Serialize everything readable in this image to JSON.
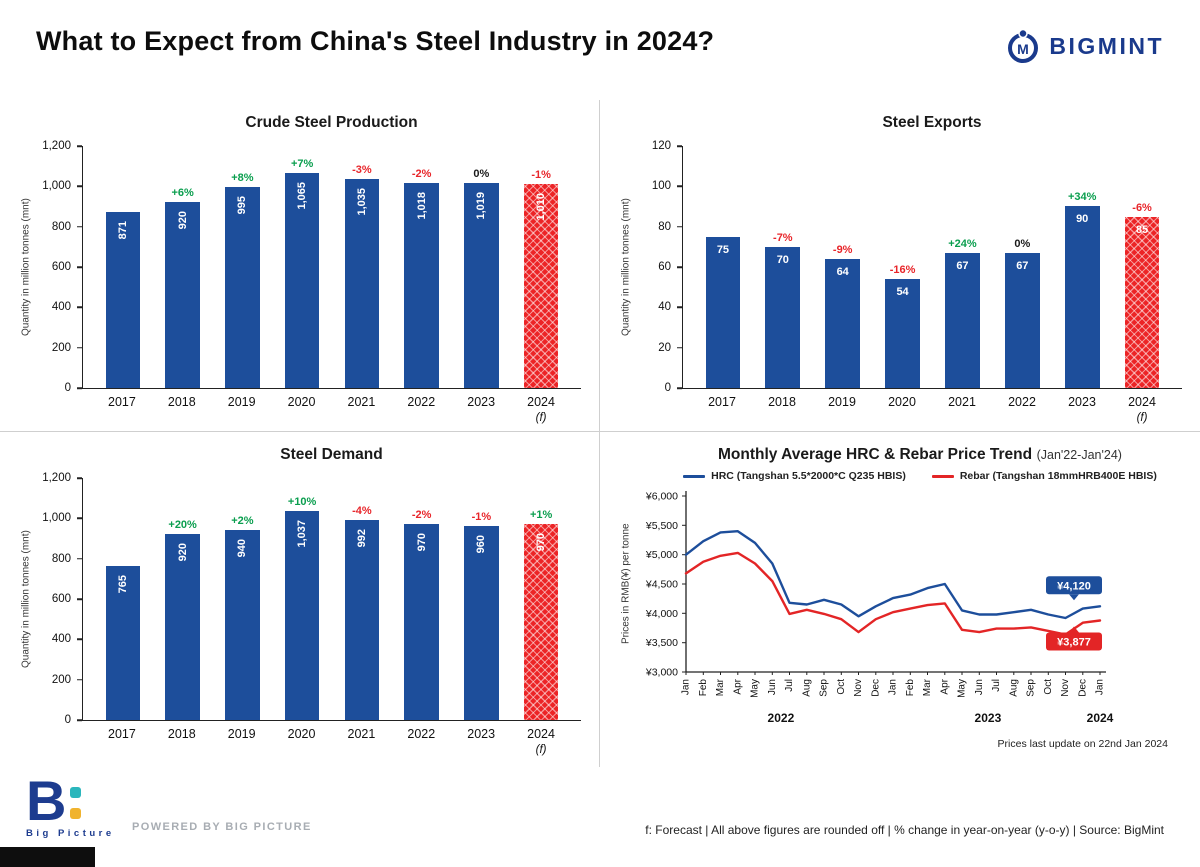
{
  "header": {
    "title": "What to Expect from China's Steel Industry in 2024?",
    "brand": "BIGMINT"
  },
  "colors": {
    "bar_blue": "#1d4e9b",
    "forecast_red": "#ec2426",
    "positive_green": "#0a9e4e",
    "negative_red": "#e8252a",
    "neutral_black": "#1a1a1a",
    "hrc_blue": "#1d4e9b",
    "rebar_red": "#e32526",
    "brand_navy": "#1a3a8c",
    "teal": "#2bb6bc",
    "yellow": "#f0b32e"
  },
  "chart_data": [
    {
      "type": "bar",
      "title": "Crude Steel Production",
      "ylabel": "Quantity in million tonnes (mnt)",
      "ylim": [
        0,
        1200
      ],
      "yticks": {
        "values": [
          0,
          200,
          400,
          600,
          800,
          1000,
          1200
        ],
        "labels": [
          "0",
          "200",
          "400",
          "600",
          "800",
          "1,000",
          "1,200"
        ]
      },
      "categories": [
        "2017",
        "2018",
        "2019",
        "2020",
        "2021",
        "2022",
        "2023",
        "2024"
      ],
      "forecast_last": true,
      "forecast_suffix": "(f)",
      "values": [
        871,
        920,
        995,
        1065,
        1035,
        1018,
        1019,
        1010
      ],
      "value_labels": [
        "871",
        "920",
        "995",
        "1,065",
        "1,035",
        "1,018",
        "1,019",
        "1,010"
      ],
      "pct_change": [
        "",
        "+6%",
        "+8%",
        "+7%",
        "-3%",
        "-2%",
        "0%",
        "-1%"
      ],
      "rotate_values": true
    },
    {
      "type": "bar",
      "title": "Steel Exports",
      "ylabel": "Quantity in million tonnes (mnt)",
      "ylim": [
        0,
        120
      ],
      "yticks": {
        "values": [
          0,
          20,
          40,
          60,
          80,
          100,
          120
        ],
        "labels": [
          "0",
          "20",
          "40",
          "60",
          "80",
          "100",
          "120"
        ]
      },
      "categories": [
        "2017",
        "2018",
        "2019",
        "2020",
        "2021",
        "2022",
        "2023",
        "2024"
      ],
      "forecast_last": true,
      "forecast_suffix": "(f)",
      "values": [
        75,
        70,
        64,
        54,
        67,
        67,
        90,
        85
      ],
      "value_labels": [
        "75",
        "70",
        "64",
        "54",
        "67",
        "67",
        "90",
        "85"
      ],
      "pct_change": [
        "",
        "-7%",
        "-9%",
        "-16%",
        "+24%",
        "0%",
        "+34%",
        "-6%"
      ],
      "rotate_values": false
    },
    {
      "type": "bar",
      "title": "Steel Demand",
      "ylabel": "Quantity in million tonnes (mnt)",
      "ylim": [
        0,
        1200
      ],
      "yticks": {
        "values": [
          0,
          200,
          400,
          600,
          800,
          1000,
          1200
        ],
        "labels": [
          "0",
          "200",
          "400",
          "600",
          "800",
          "1,000",
          "1,200"
        ]
      },
      "categories": [
        "2017",
        "2018",
        "2019",
        "2020",
        "2021",
        "2022",
        "2023",
        "2024"
      ],
      "forecast_last": true,
      "forecast_suffix": "(f)",
      "values": [
        765,
        920,
        940,
        1037,
        992,
        970,
        960,
        970
      ],
      "value_labels": [
        "765",
        "920",
        "940",
        "1,037",
        "992",
        "970",
        "960",
        "970"
      ],
      "pct_change": [
        "",
        "+20%",
        "+2%",
        "+10%",
        "-4%",
        "-2%",
        "-1%",
        "+1%"
      ],
      "rotate_values": true
    },
    {
      "type": "line",
      "title": "Monthly Average HRC & Rebar Price Trend",
      "title_suffix": "(Jan'22-Jan'24)",
      "ylabel": "Prices in RMB(¥) per tonne",
      "ylim": [
        3000,
        6000
      ],
      "yticks": {
        "values": [
          3000,
          3500,
          4000,
          4500,
          5000,
          5500,
          6000
        ],
        "labels": [
          "¥3,000",
          "¥3,500",
          "¥4,000",
          "¥4,500",
          "¥5,000",
          "¥5,500",
          "¥6,000"
        ]
      },
      "months": [
        "Jan",
        "Feb",
        "Mar",
        "Apr",
        "May",
        "Jun",
        "Jul",
        "Aug",
        "Sep",
        "Oct",
        "Nov",
        "Dec",
        "Jan",
        "Feb",
        "Mar",
        "Apr",
        "May",
        "Jun",
        "Jul",
        "Aug",
        "Sep",
        "Oct",
        "Nov",
        "Dec",
        "Jan"
      ],
      "years": [
        {
          "label": "2022",
          "index": 5.5
        },
        {
          "label": "2023",
          "index": 17.5
        },
        {
          "label": "2024",
          "index": 24
        }
      ],
      "series": [
        {
          "name": "HRC (Tangshan 5.5*2000*C Q235 HBIS)",
          "color_key": "hrc_blue",
          "values": [
            5000,
            5230,
            5380,
            5400,
            5200,
            4850,
            4180,
            4150,
            4230,
            4150,
            3950,
            4120,
            4260,
            4320,
            4430,
            4500,
            4050,
            3980,
            3980,
            4020,
            4060,
            3980,
            3920,
            4080,
            4120
          ],
          "end_label": "¥4,120"
        },
        {
          "name": "Rebar (Tangshan 18mmHRB400E HBIS)",
          "color_key": "rebar_red",
          "values": [
            4680,
            4880,
            4980,
            5030,
            4850,
            4550,
            3990,
            4060,
            3990,
            3900,
            3680,
            3900,
            4020,
            4080,
            4140,
            4170,
            3720,
            3680,
            3740,
            3740,
            3760,
            3700,
            3640,
            3840,
            3877
          ],
          "end_label": "¥3,877"
        }
      ]
    }
  ],
  "price_note": "Prices last update on 22nd Jan 2024",
  "footer": {
    "logo_letter": "B",
    "logo_text": "Big Picture",
    "powered_by": "POWERED BY BIG PICTURE",
    "note": "f: Forecast | All above figures are rounded off | % change in year-on-year (y-o-y) | Source: BigMint"
  }
}
